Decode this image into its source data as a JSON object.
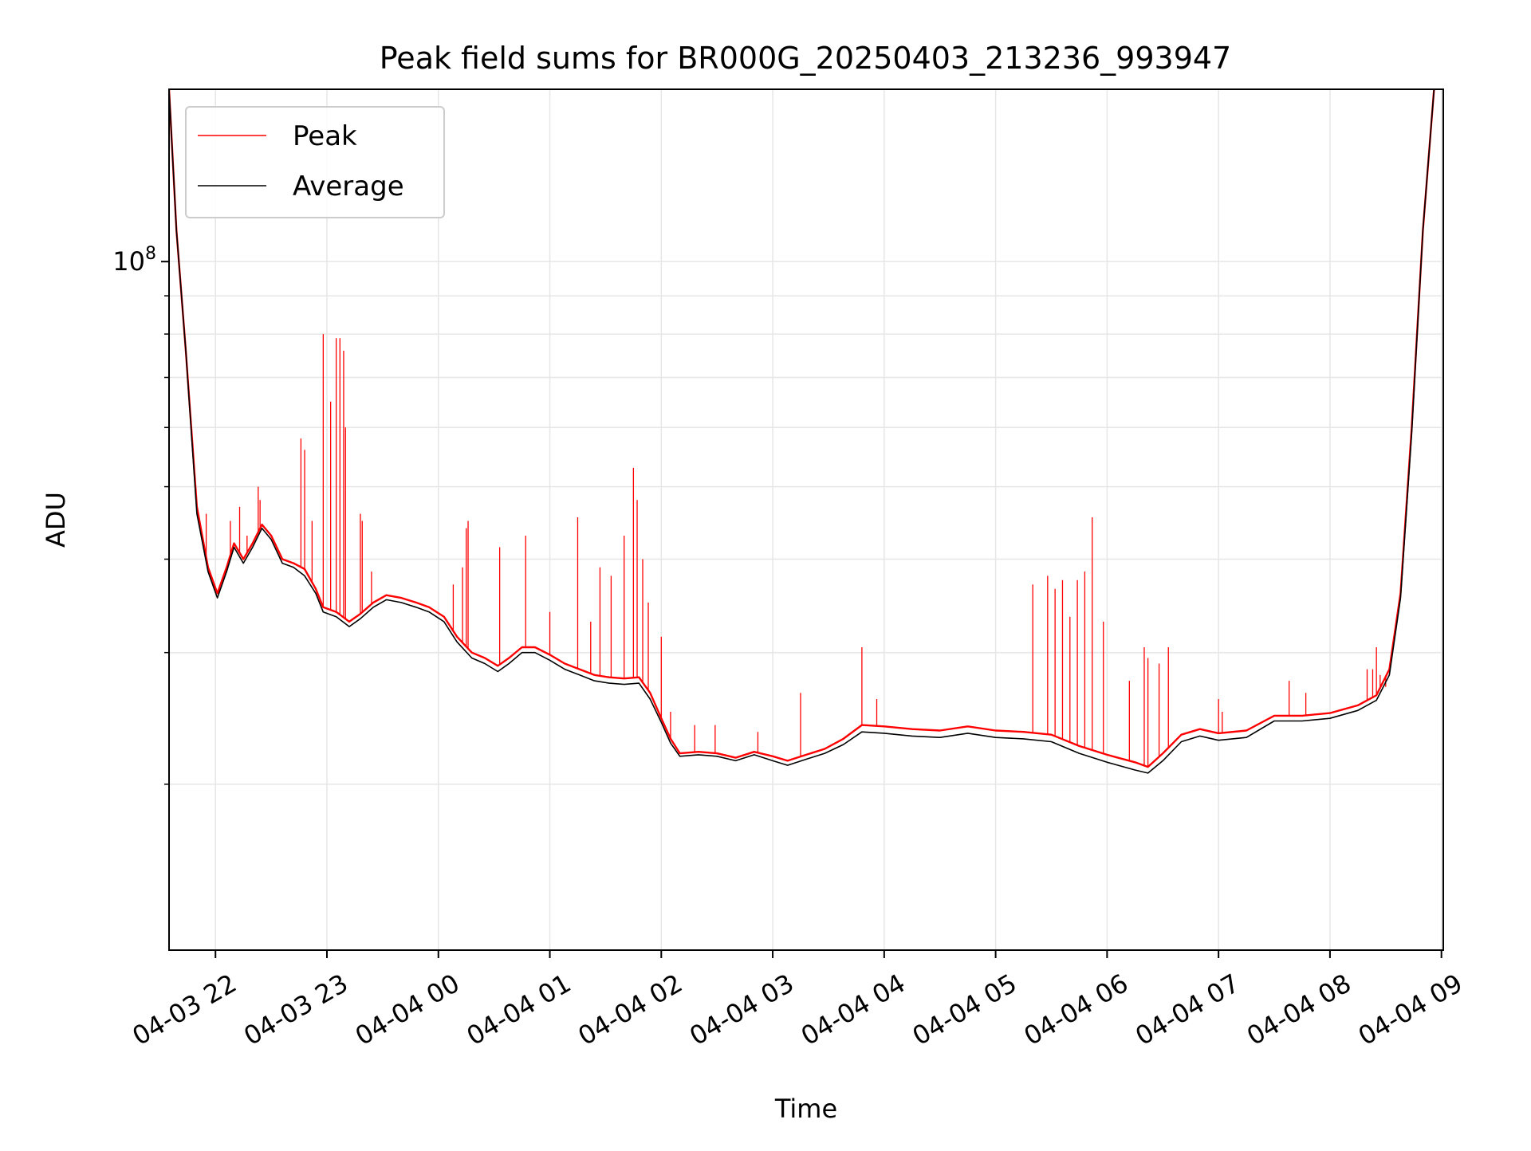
{
  "chart_data": {
    "type": "line",
    "title": "Peak field sums for BR000G_20250403_213236_993947",
    "xlabel": "Time",
    "ylabel": "ADU",
    "yscale": "log",
    "ylim": [
      12000000,
      170000000
    ],
    "y_major_tick_labels": [
      {
        "value": 100000000,
        "base": "10",
        "exp": "8"
      }
    ],
    "y_minor_ticks": [
      20000000,
      30000000,
      40000000,
      50000000,
      60000000,
      70000000,
      80000000,
      90000000
    ],
    "x_range": [
      "2025-04-03 21:35",
      "2025-04-04 09:01"
    ],
    "x_ticks": [
      {
        "t": "2025-04-03 22:00",
        "label": "04-03 22"
      },
      {
        "t": "2025-04-03 23:00",
        "label": "04-03 23"
      },
      {
        "t": "2025-04-04 00:00",
        "label": "04-04 00"
      },
      {
        "t": "2025-04-04 01:00",
        "label": "04-04 01"
      },
      {
        "t": "2025-04-04 02:00",
        "label": "04-04 02"
      },
      {
        "t": "2025-04-04 03:00",
        "label": "04-04 03"
      },
      {
        "t": "2025-04-04 04:00",
        "label": "04-04 04"
      },
      {
        "t": "2025-04-04 05:00",
        "label": "04-04 05"
      },
      {
        "t": "2025-04-04 06:00",
        "label": "04-04 06"
      },
      {
        "t": "2025-04-04 07:00",
        "label": "04-04 07"
      },
      {
        "t": "2025-04-04 08:00",
        "label": "04-04 08"
      },
      {
        "t": "2025-04-04 09:00",
        "label": "04-04 09"
      }
    ],
    "grid": true,
    "legend_position": "top-left",
    "series": [
      {
        "name": "Peak",
        "color": "#ff0000",
        "points": [
          [
            "2025-04-03 21:35",
            170000000
          ],
          [
            "2025-04-03 21:39",
            110000000
          ],
          [
            "2025-04-03 21:44",
            76000000
          ],
          [
            "2025-04-03 21:50",
            47000000
          ],
          [
            "2025-04-03 21:56",
            39000000
          ],
          [
            "2025-04-03 22:01",
            36000000
          ],
          [
            "2025-04-03 22:06",
            39000000
          ],
          [
            "2025-04-03 22:10",
            42000000
          ],
          [
            "2025-04-03 22:15",
            40000000
          ],
          [
            "2025-04-03 22:20",
            42000000
          ],
          [
            "2025-04-03 22:25",
            44500000
          ],
          [
            "2025-04-03 22:30",
            43000000
          ],
          [
            "2025-04-03 22:36",
            40000000
          ],
          [
            "2025-04-03 22:42",
            39500000
          ],
          [
            "2025-04-03 22:48",
            38800000
          ],
          [
            "2025-04-03 22:54",
            36500000
          ],
          [
            "2025-04-03 22:58",
            34500000
          ],
          [
            "2025-04-03 23:05",
            34000000
          ],
          [
            "2025-04-03 23:12",
            33000000
          ],
          [
            "2025-04-03 23:18",
            33800000
          ],
          [
            "2025-04-03 23:25",
            35000000
          ],
          [
            "2025-04-03 23:32",
            35800000
          ],
          [
            "2025-04-03 23:40",
            35500000
          ],
          [
            "2025-04-03 23:48",
            35000000
          ],
          [
            "2025-04-03 23:55",
            34500000
          ],
          [
            "2025-04-04 00:03",
            33500000
          ],
          [
            "2025-04-04 00:10",
            31500000
          ],
          [
            "2025-04-04 00:18",
            30000000
          ],
          [
            "2025-04-04 00:25",
            29500000
          ],
          [
            "2025-04-04 00:32",
            28800000
          ],
          [
            "2025-04-04 00:38",
            29500000
          ],
          [
            "2025-04-04 00:45",
            30500000
          ],
          [
            "2025-04-04 00:52",
            30500000
          ],
          [
            "2025-04-04 01:00",
            29800000
          ],
          [
            "2025-04-04 01:08",
            29000000
          ],
          [
            "2025-04-04 01:16",
            28500000
          ],
          [
            "2025-04-04 01:24",
            28000000
          ],
          [
            "2025-04-04 01:32",
            27800000
          ],
          [
            "2025-04-04 01:40",
            27700000
          ],
          [
            "2025-04-04 01:48",
            27800000
          ],
          [
            "2025-04-04 01:54",
            26500000
          ],
          [
            "2025-04-04 02:00",
            24500000
          ],
          [
            "2025-04-04 02:05",
            23000000
          ],
          [
            "2025-04-04 02:10",
            22000000
          ],
          [
            "2025-04-04 02:20",
            22100000
          ],
          [
            "2025-04-04 02:30",
            22000000
          ],
          [
            "2025-04-04 02:40",
            21700000
          ],
          [
            "2025-04-04 02:50",
            22100000
          ],
          [
            "2025-04-04 03:00",
            21800000
          ],
          [
            "2025-04-04 03:08",
            21500000
          ],
          [
            "2025-04-04 03:18",
            21900000
          ],
          [
            "2025-04-04 03:28",
            22300000
          ],
          [
            "2025-04-04 03:38",
            23000000
          ],
          [
            "2025-04-04 03:48",
            24000000
          ],
          [
            "2025-04-04 04:00",
            23900000
          ],
          [
            "2025-04-04 04:15",
            23700000
          ],
          [
            "2025-04-04 04:30",
            23600000
          ],
          [
            "2025-04-04 04:45",
            23900000
          ],
          [
            "2025-04-04 05:00",
            23600000
          ],
          [
            "2025-04-04 05:15",
            23500000
          ],
          [
            "2025-04-04 05:30",
            23300000
          ],
          [
            "2025-04-04 05:45",
            22500000
          ],
          [
            "2025-04-04 06:00",
            21900000
          ],
          [
            "2025-04-04 06:15",
            21400000
          ],
          [
            "2025-04-04 06:22",
            21100000
          ],
          [
            "2025-04-04 06:30",
            22000000
          ],
          [
            "2025-04-04 06:40",
            23300000
          ],
          [
            "2025-04-04 06:50",
            23700000
          ],
          [
            "2025-04-04 07:00",
            23400000
          ],
          [
            "2025-04-04 07:15",
            23600000
          ],
          [
            "2025-04-04 07:30",
            24700000
          ],
          [
            "2025-04-04 07:45",
            24700000
          ],
          [
            "2025-04-04 08:00",
            24900000
          ],
          [
            "2025-04-04 08:15",
            25500000
          ],
          [
            "2025-04-04 08:25",
            26300000
          ],
          [
            "2025-04-04 08:32",
            28500000
          ],
          [
            "2025-04-04 08:38",
            36000000
          ],
          [
            "2025-04-04 08:44",
            60000000
          ],
          [
            "2025-04-04 08:50",
            110000000
          ],
          [
            "2025-04-04 08:56",
            170000000
          ]
        ],
        "spikes": [
          [
            "2025-04-03 21:55",
            46000000
          ],
          [
            "2025-04-03 22:08",
            45000000
          ],
          [
            "2025-04-03 22:13",
            47000000
          ],
          [
            "2025-04-03 22:17",
            43000000
          ],
          [
            "2025-04-03 22:23",
            50000000
          ],
          [
            "2025-04-03 22:24",
            48000000
          ],
          [
            "2025-04-03 22:46",
            58000000
          ],
          [
            "2025-04-03 22:48",
            56000000
          ],
          [
            "2025-04-03 22:52",
            45000000
          ],
          [
            "2025-04-03 22:58",
            80000000
          ],
          [
            "2025-04-03 23:02",
            65000000
          ],
          [
            "2025-04-03 23:05",
            79000000
          ],
          [
            "2025-04-03 23:07",
            79000000
          ],
          [
            "2025-04-03 23:09",
            76000000
          ],
          [
            "2025-04-03 23:10",
            60000000
          ],
          [
            "2025-04-03 23:18",
            46000000
          ],
          [
            "2025-04-03 23:19",
            45000000
          ],
          [
            "2025-04-03 23:24",
            38500000
          ],
          [
            "2025-04-04 00:08",
            37000000
          ],
          [
            "2025-04-04 00:13",
            39000000
          ],
          [
            "2025-04-04 00:15",
            44000000
          ],
          [
            "2025-04-04 00:16",
            45000000
          ],
          [
            "2025-04-04 00:33",
            41500000
          ],
          [
            "2025-04-04 00:47",
            43000000
          ],
          [
            "2025-04-04 01:00",
            34000000
          ],
          [
            "2025-04-04 01:15",
            45500000
          ],
          [
            "2025-04-04 01:22",
            33000000
          ],
          [
            "2025-04-04 01:27",
            39000000
          ],
          [
            "2025-04-04 01:33",
            38000000
          ],
          [
            "2025-04-04 01:40",
            43000000
          ],
          [
            "2025-04-04 01:45",
            53000000
          ],
          [
            "2025-04-04 01:47",
            48000000
          ],
          [
            "2025-04-04 01:50",
            40000000
          ],
          [
            "2025-04-04 01:53",
            35000000
          ],
          [
            "2025-04-04 02:00",
            31500000
          ],
          [
            "2025-04-04 02:05",
            25000000
          ],
          [
            "2025-04-04 02:18",
            24000000
          ],
          [
            "2025-04-04 02:29",
            24000000
          ],
          [
            "2025-04-04 02:52",
            23500000
          ],
          [
            "2025-04-04 03:15",
            26500000
          ],
          [
            "2025-04-04 03:48",
            30500000
          ],
          [
            "2025-04-04 03:56",
            26000000
          ],
          [
            "2025-04-04 05:20",
            37000000
          ],
          [
            "2025-04-04 05:28",
            38000000
          ],
          [
            "2025-04-04 05:32",
            36500000
          ],
          [
            "2025-04-04 05:36",
            37500000
          ],
          [
            "2025-04-04 05:40",
            33500000
          ],
          [
            "2025-04-04 05:44",
            37500000
          ],
          [
            "2025-04-04 05:48",
            38500000
          ],
          [
            "2025-04-04 05:52",
            45500000
          ],
          [
            "2025-04-04 05:58",
            33000000
          ],
          [
            "2025-04-04 06:12",
            27500000
          ],
          [
            "2025-04-04 06:20",
            30500000
          ],
          [
            "2025-04-04 06:22",
            29500000
          ],
          [
            "2025-04-04 06:28",
            29000000
          ],
          [
            "2025-04-04 06:33",
            30500000
          ],
          [
            "2025-04-04 07:00",
            26000000
          ],
          [
            "2025-04-04 07:02",
            25000000
          ],
          [
            "2025-04-04 07:38",
            27500000
          ],
          [
            "2025-04-04 07:47",
            26500000
          ],
          [
            "2025-04-04 08:20",
            28500000
          ],
          [
            "2025-04-04 08:23",
            28500000
          ],
          [
            "2025-04-04 08:25",
            30500000
          ],
          [
            "2025-04-04 08:27",
            28000000
          ],
          [
            "2025-04-04 08:30",
            27000000
          ]
        ]
      },
      {
        "name": "Average",
        "color": "#000000",
        "points": [
          [
            "2025-04-03 21:35",
            170000000
          ],
          [
            "2025-04-03 21:39",
            110000000
          ],
          [
            "2025-04-03 21:44",
            76000000
          ],
          [
            "2025-04-03 21:50",
            46000000
          ],
          [
            "2025-04-03 21:56",
            38500000
          ],
          [
            "2025-04-03 22:01",
            35500000
          ],
          [
            "2025-04-03 22:06",
            38500000
          ],
          [
            "2025-04-03 22:10",
            41500000
          ],
          [
            "2025-04-03 22:15",
            39500000
          ],
          [
            "2025-04-03 22:20",
            41500000
          ],
          [
            "2025-04-03 22:25",
            44000000
          ],
          [
            "2025-04-03 22:30",
            42500000
          ],
          [
            "2025-04-03 22:36",
            39500000
          ],
          [
            "2025-04-03 22:42",
            39000000
          ],
          [
            "2025-04-03 22:48",
            38000000
          ],
          [
            "2025-04-03 22:54",
            36000000
          ],
          [
            "2025-04-03 22:58",
            34000000
          ],
          [
            "2025-04-03 23:05",
            33500000
          ],
          [
            "2025-04-03 23:12",
            32500000
          ],
          [
            "2025-04-03 23:18",
            33300000
          ],
          [
            "2025-04-03 23:25",
            34500000
          ],
          [
            "2025-04-03 23:32",
            35300000
          ],
          [
            "2025-04-03 23:40",
            35000000
          ],
          [
            "2025-04-03 23:48",
            34500000
          ],
          [
            "2025-04-03 23:55",
            34000000
          ],
          [
            "2025-04-04 00:03",
            33000000
          ],
          [
            "2025-04-04 00:10",
            31000000
          ],
          [
            "2025-04-04 00:18",
            29500000
          ],
          [
            "2025-04-04 00:25",
            29000000
          ],
          [
            "2025-04-04 00:32",
            28300000
          ],
          [
            "2025-04-04 00:38",
            29000000
          ],
          [
            "2025-04-04 00:45",
            30000000
          ],
          [
            "2025-04-04 00:52",
            30000000
          ],
          [
            "2025-04-04 01:00",
            29300000
          ],
          [
            "2025-04-04 01:08",
            28500000
          ],
          [
            "2025-04-04 01:16",
            28000000
          ],
          [
            "2025-04-04 01:24",
            27500000
          ],
          [
            "2025-04-04 01:32",
            27300000
          ],
          [
            "2025-04-04 01:40",
            27200000
          ],
          [
            "2025-04-04 01:48",
            27300000
          ],
          [
            "2025-04-04 01:54",
            26000000
          ],
          [
            "2025-04-04 02:00",
            24200000
          ],
          [
            "2025-04-04 02:05",
            22700000
          ],
          [
            "2025-04-04 02:10",
            21800000
          ],
          [
            "2025-04-04 02:20",
            21900000
          ],
          [
            "2025-04-04 02:30",
            21800000
          ],
          [
            "2025-04-04 02:40",
            21500000
          ],
          [
            "2025-04-04 02:50",
            21900000
          ],
          [
            "2025-04-04 03:00",
            21500000
          ],
          [
            "2025-04-04 03:08",
            21200000
          ],
          [
            "2025-04-04 03:18",
            21600000
          ],
          [
            "2025-04-04 03:28",
            22000000
          ],
          [
            "2025-04-04 03:38",
            22600000
          ],
          [
            "2025-04-04 03:48",
            23500000
          ],
          [
            "2025-04-04 04:00",
            23400000
          ],
          [
            "2025-04-04 04:15",
            23200000
          ],
          [
            "2025-04-04 04:30",
            23100000
          ],
          [
            "2025-04-04 04:45",
            23400000
          ],
          [
            "2025-04-04 05:00",
            23100000
          ],
          [
            "2025-04-04 05:15",
            23000000
          ],
          [
            "2025-04-04 05:30",
            22800000
          ],
          [
            "2025-04-04 05:45",
            22000000
          ],
          [
            "2025-04-04 06:00",
            21400000
          ],
          [
            "2025-04-04 06:15",
            20900000
          ],
          [
            "2025-04-04 06:22",
            20700000
          ],
          [
            "2025-04-04 06:30",
            21500000
          ],
          [
            "2025-04-04 06:40",
            22800000
          ],
          [
            "2025-04-04 06:50",
            23200000
          ],
          [
            "2025-04-04 07:00",
            22900000
          ],
          [
            "2025-04-04 07:15",
            23100000
          ],
          [
            "2025-04-04 07:30",
            24300000
          ],
          [
            "2025-04-04 07:45",
            24300000
          ],
          [
            "2025-04-04 08:00",
            24500000
          ],
          [
            "2025-04-04 08:15",
            25100000
          ],
          [
            "2025-04-04 08:25",
            25900000
          ],
          [
            "2025-04-04 08:32",
            28000000
          ],
          [
            "2025-04-04 08:38",
            35500000
          ],
          [
            "2025-04-04 08:44",
            59000000
          ],
          [
            "2025-04-04 08:50",
            110000000
          ],
          [
            "2025-04-04 08:56",
            170000000
          ]
        ]
      }
    ]
  }
}
